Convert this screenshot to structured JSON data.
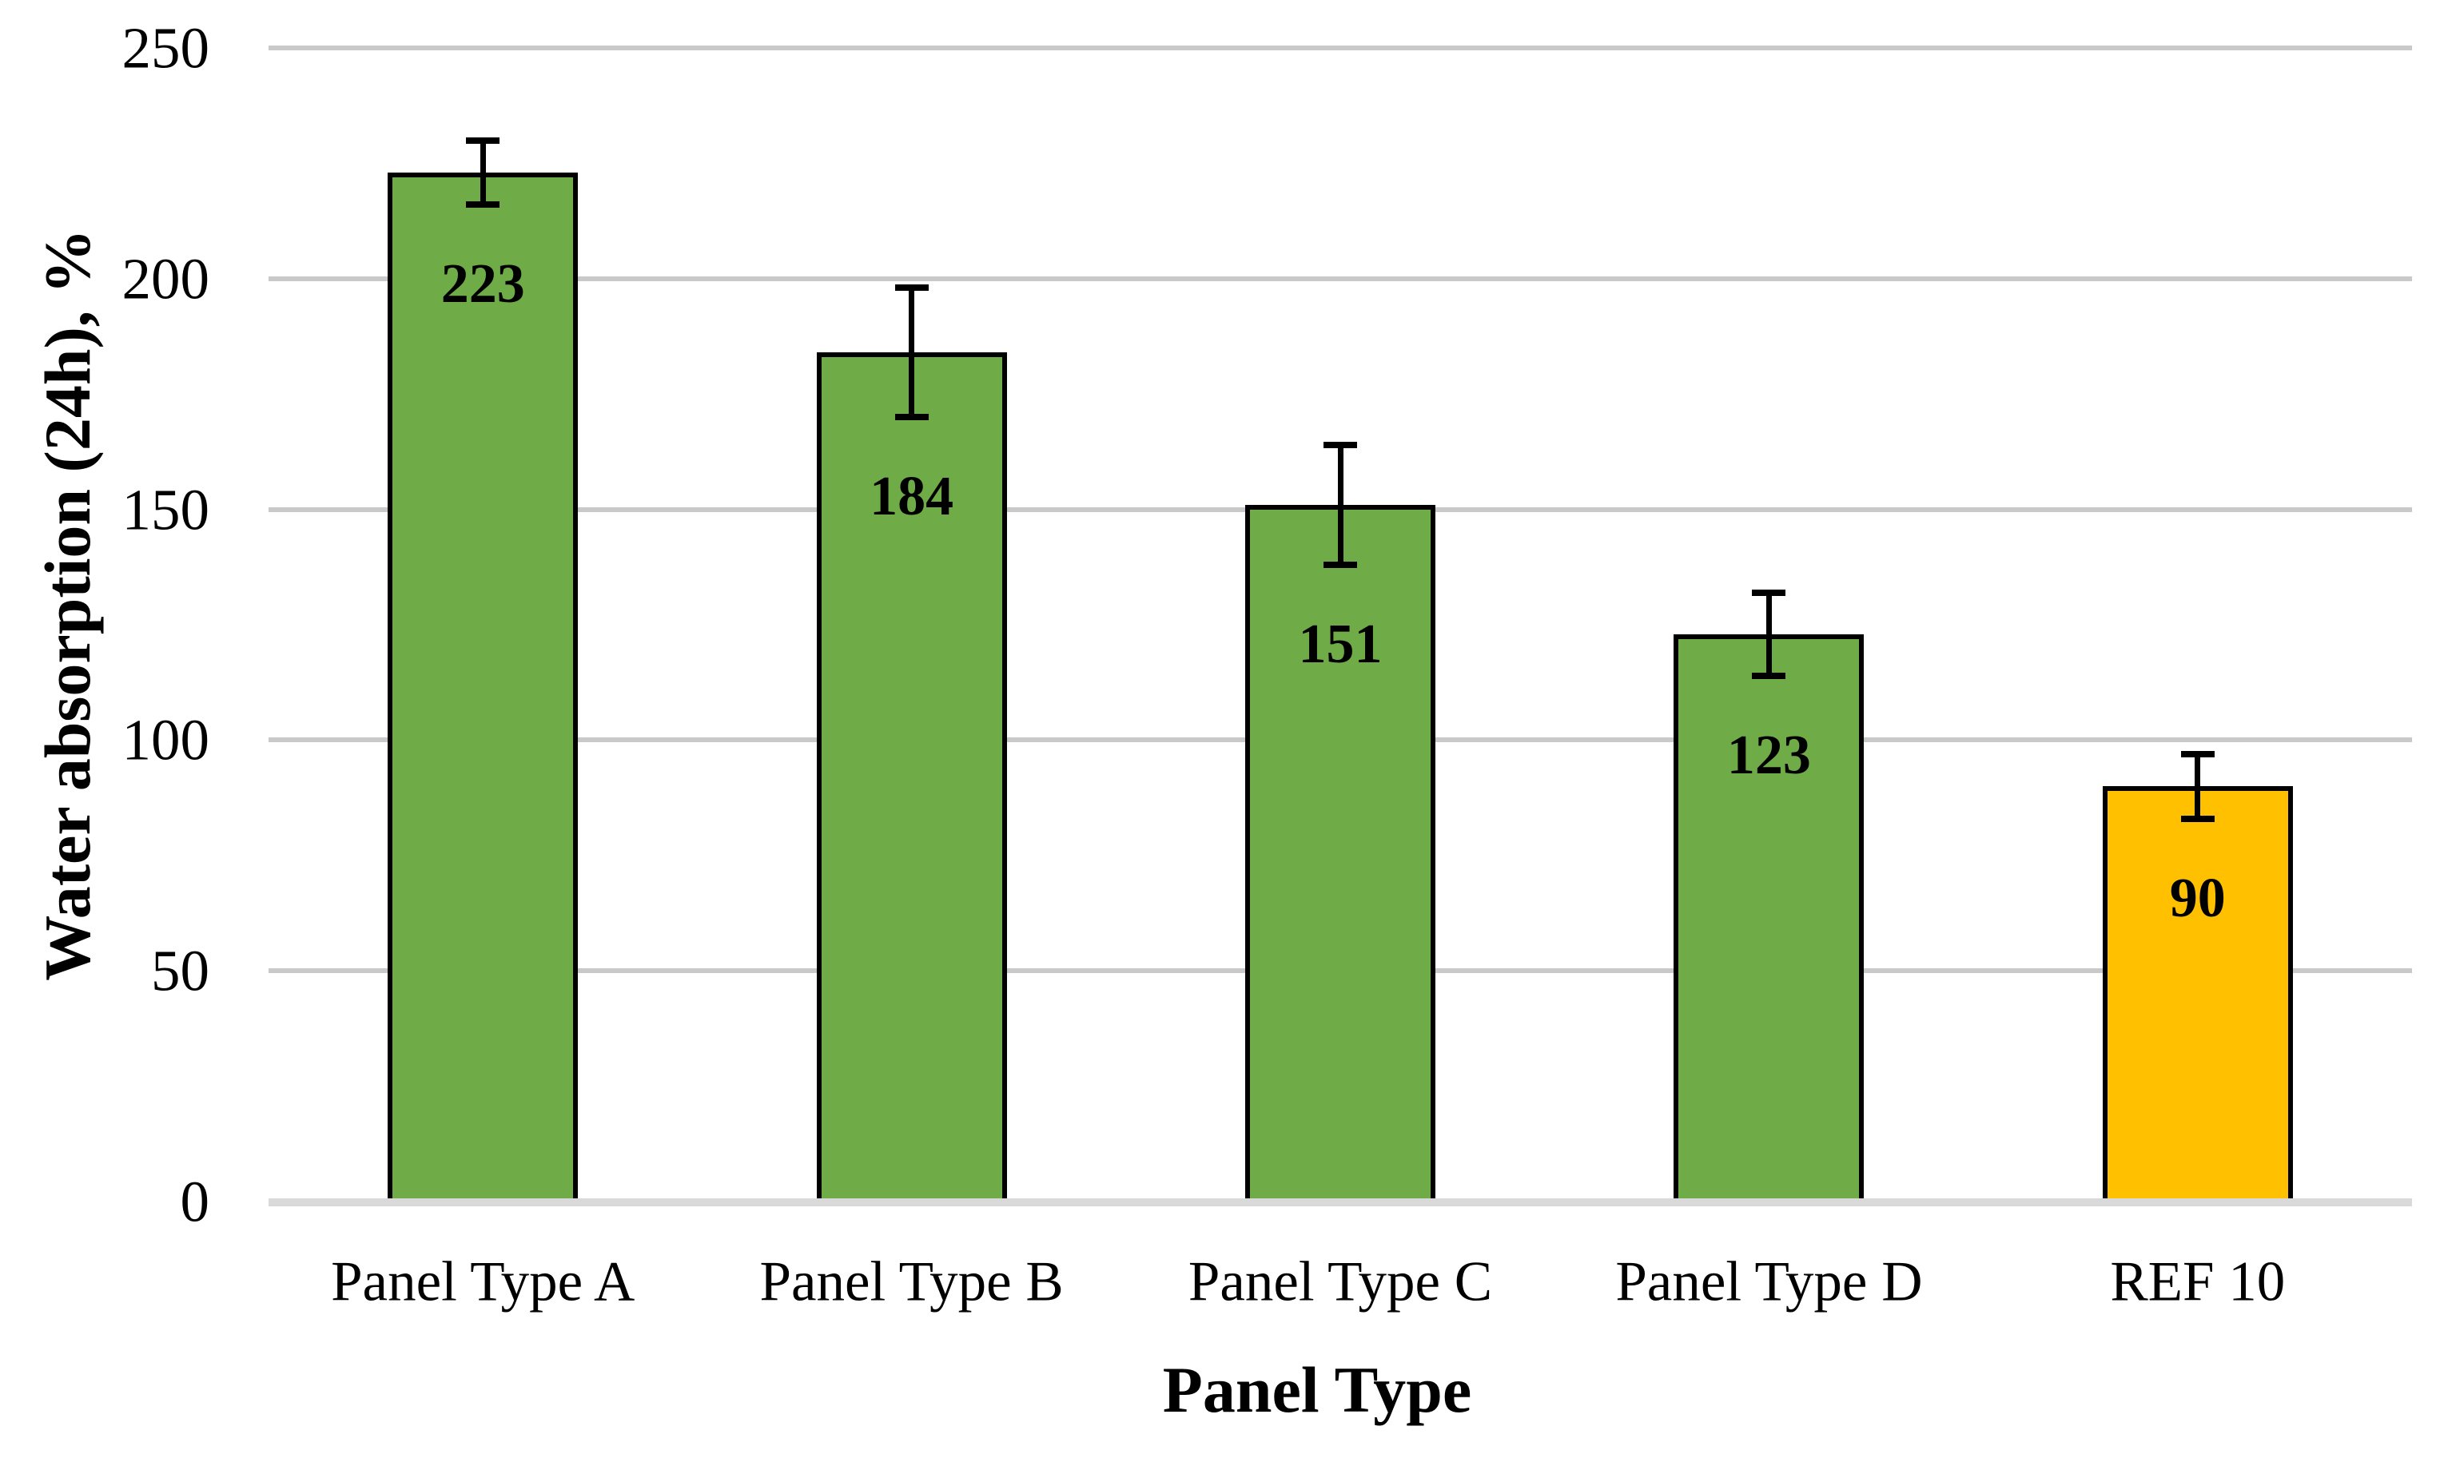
{
  "figure": {
    "background_color": "#FFFFFF"
  },
  "y_axis": {
    "title": "Water absorption (24h), %",
    "tick_labels": [
      "0",
      "50",
      "100",
      "150",
      "200",
      "250"
    ],
    "min": 0,
    "max": 250,
    "step": 50
  },
  "x_axis": {
    "title": "Panel Type"
  },
  "chart_data": {
    "type": "bar",
    "title": "",
    "xlabel": "Panel Type",
    "ylabel": "Water absorption (24h), %",
    "categories": [
      "Panel Type A",
      "Panel Type B",
      "Panel Type C",
      "Panel Type D",
      "REF 10"
    ],
    "values": [
      223,
      184,
      151,
      123,
      90
    ],
    "data_labels": [
      "223",
      "184",
      "151",
      "123",
      "90"
    ],
    "error_bars": [
      7,
      14,
      13,
      9,
      7
    ],
    "series": [
      {
        "name": "Water absorption (24h)",
        "values": [
          223,
          184,
          151,
          123,
          90
        ]
      }
    ],
    "bar_colors": [
      "#6FAC48",
      "#6FAC48",
      "#6FAC48",
      "#6FAC48",
      "#FFC000"
    ],
    "bar_border_color": "#000000",
    "error_bar_color": "#000000",
    "gridline_color": "#C9C9C9",
    "baseline_color": "#D9D9D9",
    "label_color": "#000000",
    "ylim": [
      0,
      250
    ],
    "grid": true,
    "legend_position": "none"
  }
}
